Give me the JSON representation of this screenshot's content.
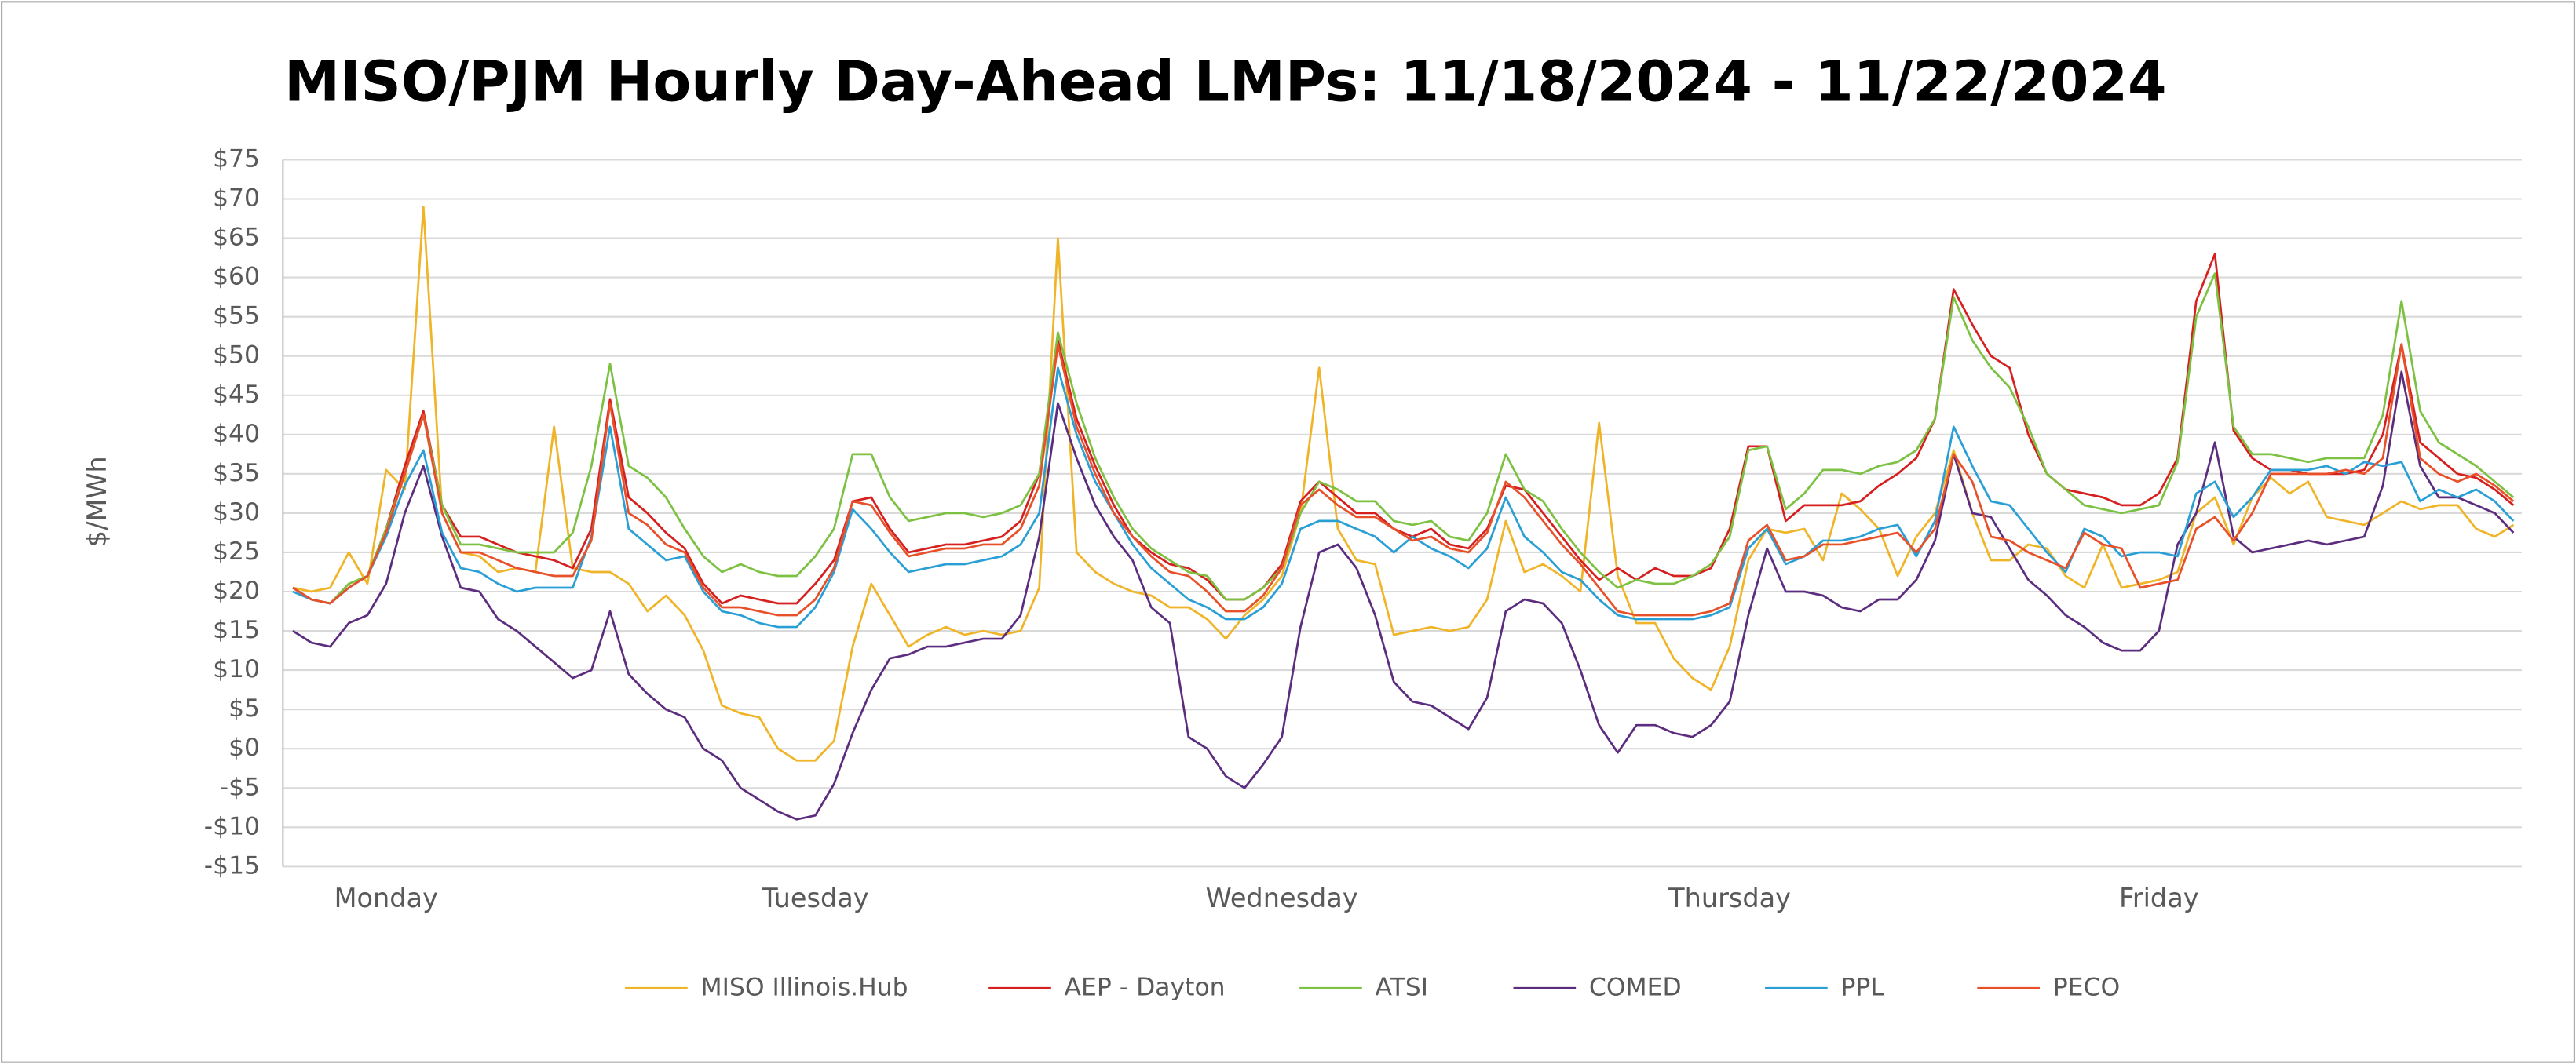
{
  "chart_data": {
    "type": "line",
    "title": "MISO/PJM Hourly Day-Ahead LMPs: 11/18/2024 - 11/22/2024",
    "y_label": "$/MWh",
    "categories": [
      null,
      null,
      null,
      null,
      null,
      "Monday",
      null,
      null,
      null,
      null,
      null,
      null,
      null,
      null,
      null,
      null,
      null,
      null,
      null,
      null,
      null,
      null,
      null,
      null,
      null,
      null,
      null,
      null,
      "Tuesday",
      null,
      null,
      null,
      null,
      null,
      null,
      null,
      null,
      null,
      null,
      null,
      null,
      null,
      null,
      null,
      null,
      null,
      null,
      null,
      null,
      null,
      null,
      null,
      null,
      "Wednesday",
      null,
      null,
      null,
      null,
      null,
      null,
      null,
      null,
      null,
      null,
      null,
      null,
      null,
      null,
      null,
      null,
      null,
      null,
      null,
      null,
      null,
      null,
      null,
      "Thursday",
      null,
      null,
      null,
      null,
      null,
      null,
      null,
      null,
      null,
      null,
      null,
      null,
      null,
      null,
      null,
      null,
      null,
      null,
      null,
      null,
      null,
      null,
      "Friday",
      null,
      null,
      null,
      null,
      null,
      null,
      null,
      null,
      null,
      null,
      null,
      null,
      null,
      null,
      null,
      null,
      null,
      null,
      null
    ],
    "ylim": [
      -15,
      75
    ],
    "yticks": [
      {
        "value": 75,
        "label": "$75"
      },
      {
        "value": 70,
        "label": "$70"
      },
      {
        "value": 65,
        "label": "$65"
      },
      {
        "value": 60,
        "label": "$60"
      },
      {
        "value": 55,
        "label": "$55"
      },
      {
        "value": 50,
        "label": "$50"
      },
      {
        "value": 45,
        "label": "$45"
      },
      {
        "value": 40,
        "label": "$40"
      },
      {
        "value": 35,
        "label": "$35"
      },
      {
        "value": 30,
        "label": "$30"
      },
      {
        "value": 25,
        "label": "$25"
      },
      {
        "value": 20,
        "label": "$20"
      },
      {
        "value": 15,
        "label": "$15"
      },
      {
        "value": 10,
        "label": "$10"
      },
      {
        "value": 5,
        "label": "$5"
      },
      {
        "value": 0,
        "label": "$0"
      },
      {
        "value": -5,
        "label": "-$5"
      },
      {
        "value": -10,
        "label": "-$10"
      },
      {
        "value": -15,
        "label": "-$15"
      }
    ],
    "grid": true,
    "legend": "bottom",
    "series": [
      {
        "name": "MISO Illinois.Hub",
        "color": "#f0b428",
        "values": [
          20.5,
          20,
          20.5,
          25,
          21,
          35.5,
          33,
          69,
          30,
          25,
          24.5,
          22.5,
          23,
          22.5,
          41,
          23,
          22.5,
          22.5,
          21,
          17.5,
          19.5,
          17,
          12.5,
          5.5,
          4.5,
          4,
          0,
          -1.5,
          -1.5,
          1,
          13,
          21,
          17,
          13,
          14.5,
          15.5,
          14.5,
          15,
          14.5,
          15,
          20.5,
          65,
          25,
          22.5,
          21,
          20,
          19.5,
          18,
          18,
          16.5,
          14,
          17,
          19,
          22,
          30,
          48.5,
          28,
          24,
          23.5,
          14.5,
          15,
          15.5,
          15,
          15.5,
          19,
          29,
          22.5,
          23.5,
          22,
          20,
          41.5,
          22,
          16,
          16,
          11.5,
          9,
          7.5,
          13,
          24,
          28,
          27.5,
          28,
          24,
          32.5,
          30.5,
          28,
          22,
          27,
          30,
          38,
          30,
          24,
          24,
          26,
          25.5,
          22,
          20.5,
          26,
          20.5,
          21,
          21.5,
          22.5,
          30,
          32,
          26,
          32,
          34.5,
          32.5,
          34,
          29.5,
          29,
          28.5,
          30,
          31.5,
          30.5,
          31,
          31,
          28,
          27,
          28.5
        ]
      },
      {
        "name": "AEP - Dayton",
        "color": "#d62020",
        "values": [
          20.5,
          19,
          18.5,
          20.5,
          22,
          28,
          36,
          43,
          31,
          27,
          27,
          26,
          25,
          24.5,
          24,
          23,
          28,
          44.5,
          32,
          30,
          27.5,
          25.5,
          21,
          18.5,
          19.5,
          19,
          18.5,
          18.5,
          21,
          24,
          31.5,
          32,
          28,
          25,
          25.5,
          26,
          26,
          26.5,
          27,
          29,
          35,
          52,
          42,
          36,
          31,
          27,
          25,
          23.5,
          23,
          21.5,
          19,
          19,
          20.5,
          23.5,
          31.5,
          34,
          32,
          30,
          30,
          28,
          27,
          28,
          26,
          25.5,
          28,
          33.5,
          33,
          30,
          27,
          24,
          21.5,
          23,
          21.5,
          23,
          22,
          22,
          23,
          28,
          38.5,
          38.5,
          29,
          31,
          31,
          31,
          31.5,
          33.5,
          35,
          37,
          42,
          58.5,
          54,
          50,
          48.5,
          40,
          35,
          33,
          32.5,
          32,
          31,
          31,
          32.5,
          37,
          57,
          63,
          40.5,
          37,
          35.5,
          35.5,
          35,
          35,
          35,
          35.5,
          40,
          51.5,
          39,
          37,
          35,
          34.5,
          33,
          31
        ]
      },
      {
        "name": "ATSI",
        "color": "#7cc142",
        "values": [
          20.5,
          19,
          18.5,
          21,
          22,
          28,
          35,
          42.5,
          31,
          26,
          26,
          25.5,
          25,
          25,
          25,
          27.5,
          36,
          49,
          36,
          34.5,
          32,
          28,
          24.5,
          22.5,
          23.5,
          22.5,
          22,
          22,
          24.5,
          28,
          37.5,
          37.5,
          32,
          29,
          29.5,
          30,
          30,
          29.5,
          30,
          31,
          35,
          53,
          44,
          37,
          32,
          28,
          25.5,
          24,
          22.5,
          22,
          19,
          19,
          20.5,
          23,
          30,
          34,
          33,
          31.5,
          31.5,
          29,
          28.5,
          29,
          27,
          26.5,
          30,
          37.5,
          33,
          31.5,
          28,
          25,
          22.5,
          20.5,
          21.5,
          21,
          21,
          22,
          23.5,
          27,
          38,
          38.5,
          30.5,
          32.5,
          35.5,
          35.5,
          35,
          36,
          36.5,
          38,
          42,
          57.5,
          52,
          48.5,
          46,
          41,
          35,
          33,
          31,
          30.5,
          30,
          30.5,
          31,
          36.5,
          55,
          60.5,
          41,
          37.5,
          37.5,
          37,
          36.5,
          37,
          37,
          37,
          42.5,
          57,
          43,
          39,
          37.5,
          36,
          34,
          32
        ]
      },
      {
        "name": "COMED",
        "color": "#5c2d7e",
        "values": [
          15,
          13.5,
          13,
          16,
          17,
          21,
          30,
          36,
          27,
          20.5,
          20,
          16.5,
          15,
          13,
          11,
          9,
          10,
          17.5,
          9.5,
          7,
          5,
          4,
          0,
          -1.5,
          -5,
          -6.5,
          -8,
          -9,
          -8.5,
          -4.5,
          2,
          7.5,
          11.5,
          12,
          13,
          13,
          13.5,
          14,
          14,
          17,
          27,
          44,
          37,
          31,
          27,
          24,
          18,
          16,
          1.5,
          0,
          -3.5,
          -5,
          -2,
          1.5,
          15.5,
          25,
          26,
          23,
          17,
          8.5,
          6,
          5.5,
          4,
          2.5,
          6.5,
          17.5,
          19,
          18.5,
          16,
          10,
          3,
          -0.5,
          3,
          3,
          2,
          1.5,
          3,
          6,
          17,
          25.5,
          20,
          20,
          19.5,
          18,
          17.5,
          19,
          19,
          21.5,
          26.5,
          37.5,
          30,
          29.5,
          25.5,
          21.5,
          19.5,
          17,
          15.5,
          13.5,
          12.5,
          12.5,
          15,
          26,
          30,
          39,
          27,
          25,
          25.5,
          26,
          26.5,
          26,
          26.5,
          27,
          33.5,
          48,
          36,
          32,
          32,
          31,
          30,
          27.5
        ]
      },
      {
        "name": "PPL",
        "color": "#2a9fd6",
        "values": [
          20,
          19,
          18.5,
          20.5,
          22,
          27,
          33.5,
          38,
          27.5,
          23,
          22.5,
          21,
          20,
          20.5,
          20.5,
          20.5,
          27,
          41,
          28,
          26,
          24,
          24.5,
          20,
          17.5,
          17,
          16,
          15.5,
          15.5,
          18,
          22.5,
          30.5,
          28,
          25,
          22.5,
          23,
          23.5,
          23.5,
          24,
          24.5,
          26,
          30,
          48.5,
          40,
          34,
          30,
          26,
          23,
          21,
          19,
          18,
          16.5,
          16.5,
          18,
          21,
          28,
          29,
          29,
          28,
          27,
          25,
          27,
          25.5,
          24.5,
          23,
          25.5,
          32,
          27,
          25,
          22.5,
          21.5,
          19,
          17,
          16.5,
          16.5,
          16.5,
          16.5,
          17,
          18,
          25.5,
          28,
          23.5,
          24.5,
          26.5,
          26.5,
          27,
          28,
          28.5,
          24.5,
          29,
          41,
          36,
          31.5,
          31,
          28,
          25,
          22.5,
          28,
          27,
          24.5,
          25,
          25,
          24.5,
          32.5,
          34,
          29.5,
          32,
          35.5,
          35.5,
          35.5,
          36,
          35,
          36.5,
          36,
          36.5,
          31.5,
          33,
          32,
          33,
          31.5,
          29
        ]
      },
      {
        "name": "PECO",
        "color": "#e8502a",
        "values": [
          20.5,
          19,
          18.5,
          20.5,
          22,
          27.5,
          35,
          42.5,
          30,
          25,
          25,
          24,
          23,
          22.5,
          22,
          22,
          26.5,
          44,
          30,
          28.5,
          26,
          25,
          20.5,
          18,
          18,
          17.5,
          17,
          17,
          19,
          23,
          31.5,
          31,
          27.5,
          24.5,
          25,
          25.5,
          25.5,
          26,
          26,
          28,
          33.5,
          51.5,
          41,
          35,
          30,
          27,
          24.5,
          22.5,
          22,
          20,
          17.5,
          17.5,
          19.5,
          23,
          31,
          33,
          31,
          29.5,
          29.5,
          28,
          26.5,
          27,
          25.5,
          25,
          27.5,
          34,
          32,
          29,
          26,
          23.5,
          20.5,
          17.5,
          17,
          17,
          17,
          17,
          17.5,
          18.5,
          26.5,
          28.5,
          24,
          24.5,
          26,
          26,
          26.5,
          27,
          27.5,
          25,
          28,
          37.5,
          34,
          27,
          26.5,
          25,
          24,
          23,
          27.5,
          26,
          25.5,
          20.5,
          21,
          21.5,
          28,
          29.5,
          26.5,
          30,
          35,
          35,
          35,
          35,
          35.5,
          35,
          37,
          51.5,
          37,
          35,
          34,
          35,
          33.5,
          31.5
        ]
      }
    ]
  }
}
